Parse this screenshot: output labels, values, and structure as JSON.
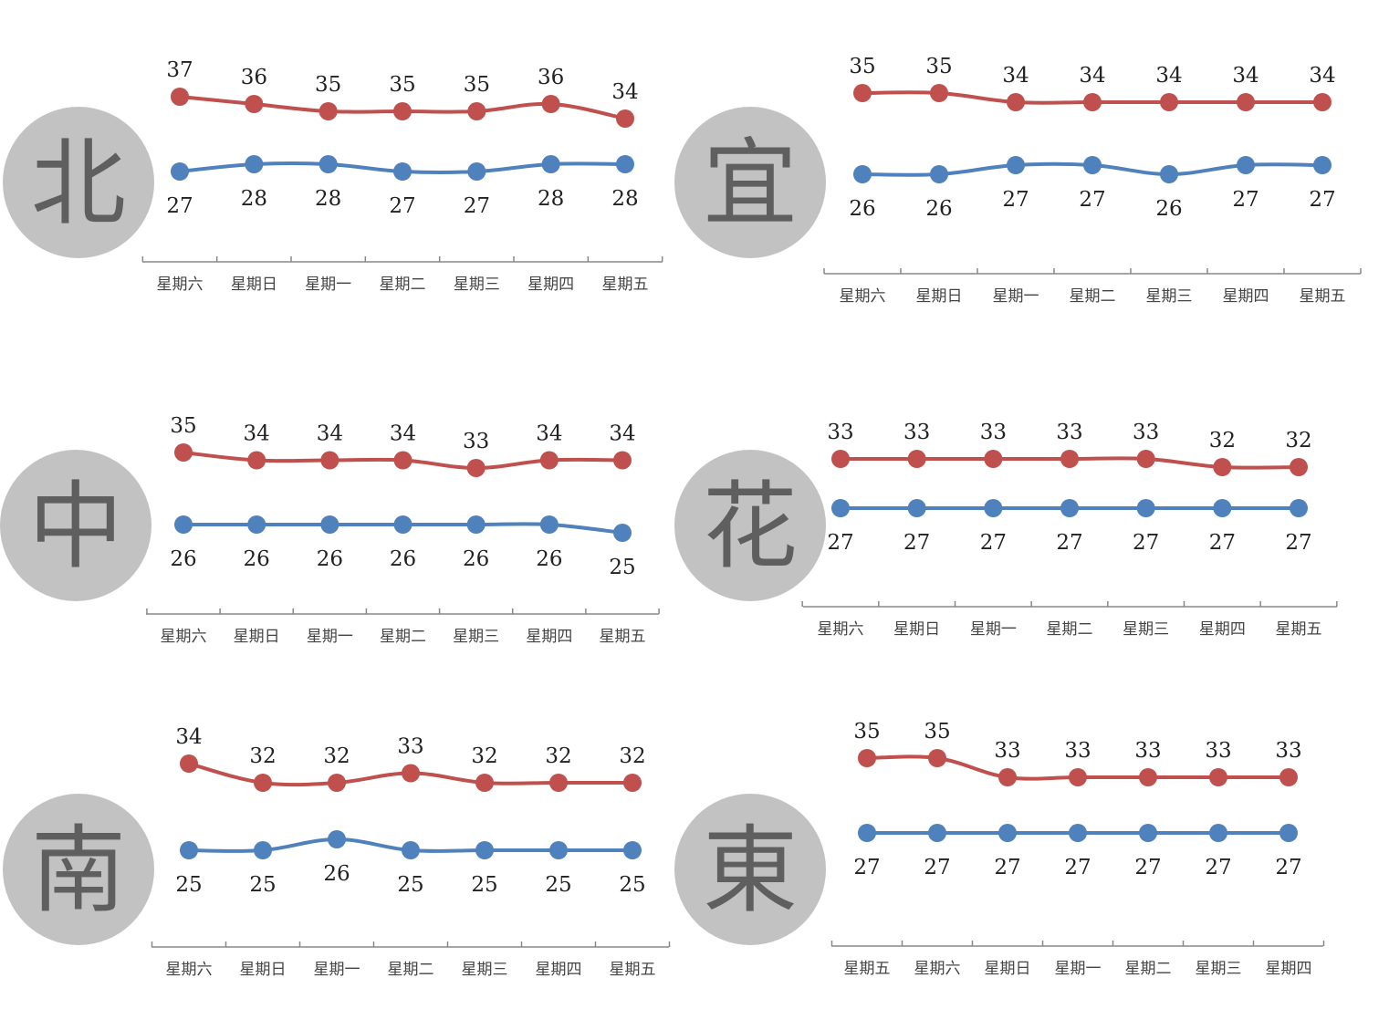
{
  "colors": {
    "high": "#c0504d",
    "low": "#4f81bd",
    "badge": "#c2c2c2",
    "badge_text": "#5f5f5f",
    "axis": "#888888"
  },
  "chart_data": [
    {
      "type": "line",
      "city": "北",
      "categories": [
        "星期六",
        "星期日",
        "星期一",
        "星期二",
        "星期三",
        "星期四",
        "星期五"
      ],
      "series": [
        {
          "values": [
            37,
            36,
            35,
            35,
            35,
            36,
            34
          ]
        },
        {
          "values": [
            27,
            28,
            28,
            27,
            27,
            28,
            28
          ]
        }
      ],
      "grid": false
    },
    {
      "type": "line",
      "city": "宜",
      "categories": [
        "星期六",
        "星期日",
        "星期一",
        "星期二",
        "星期三",
        "星期四",
        "星期五"
      ],
      "series": [
        {
          "values": [
            35,
            35,
            34,
            34,
            34,
            34,
            34
          ]
        },
        {
          "values": [
            26,
            26,
            27,
            27,
            26,
            27,
            27
          ]
        }
      ],
      "grid": false
    },
    {
      "type": "line",
      "city": "中",
      "categories": [
        "星期六",
        "星期日",
        "星期一",
        "星期二",
        "星期三",
        "星期四",
        "星期五"
      ],
      "series": [
        {
          "values": [
            35,
            34,
            34,
            34,
            33,
            34,
            34
          ]
        },
        {
          "values": [
            26,
            26,
            26,
            26,
            26,
            26,
            25
          ]
        }
      ],
      "grid": false
    },
    {
      "type": "line",
      "city": "花",
      "categories": [
        "星期六",
        "星期日",
        "星期一",
        "星期二",
        "星期三",
        "星期四",
        "星期五"
      ],
      "series": [
        {
          "values": [
            33,
            33,
            33,
            33,
            33,
            32,
            32
          ]
        },
        {
          "values": [
            27,
            27,
            27,
            27,
            27,
            27,
            27
          ]
        }
      ],
      "grid": false
    },
    {
      "type": "line",
      "city": "南",
      "categories": [
        "星期六",
        "星期日",
        "星期一",
        "星期二",
        "星期三",
        "星期四",
        "星期五"
      ],
      "series": [
        {
          "values": [
            34,
            32,
            32,
            33,
            32,
            32,
            32
          ]
        },
        {
          "values": [
            25,
            25,
            26,
            25,
            25,
            25,
            25
          ]
        }
      ],
      "grid": false
    },
    {
      "type": "line",
      "city": "東",
      "categories": [
        "星期五",
        "星期六",
        "星期日",
        "星期一",
        "星期二",
        "星期三",
        "星期四"
      ],
      "series": [
        {
          "values": [
            35,
            35,
            33,
            33,
            33,
            33,
            33
          ]
        },
        {
          "values": [
            27,
            27,
            27,
            27,
            27,
            27,
            27
          ]
        }
      ],
      "grid": false
    }
  ]
}
